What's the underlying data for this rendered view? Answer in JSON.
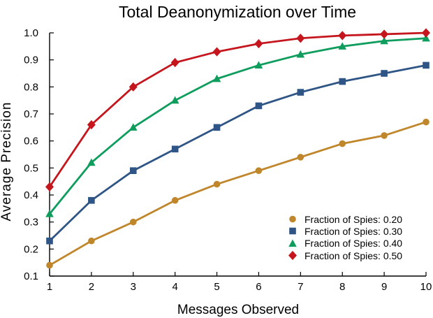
{
  "chart_data": {
    "type": "line",
    "title": "Total Deanonymization over Time",
    "xlabel": "Messages Observed",
    "ylabel": "Average Precision",
    "x": [
      1,
      2,
      3,
      4,
      5,
      6,
      7,
      8,
      9,
      10
    ],
    "x_tick_labels": [
      "1",
      "2",
      "3",
      "4",
      "5",
      "6",
      "7",
      "8",
      "9",
      "10"
    ],
    "y_tick_labels": [
      "0.1",
      "0.2",
      "0.3",
      "0.4",
      "0.5",
      "0.6",
      "0.7",
      "0.8",
      "0.9",
      "1.0"
    ],
    "xlim": [
      1,
      10
    ],
    "ylim": [
      0.1,
      1.0
    ],
    "grid": false,
    "legend_position": "lower right",
    "background_color": "#FFFFFF",
    "axis_color": "#000000",
    "series": [
      {
        "name": "Fraction of Spies: 0.20",
        "marker": "circle",
        "color": "#C0862B",
        "values": [
          0.14,
          0.23,
          0.3,
          0.38,
          0.44,
          0.49,
          0.54,
          0.59,
          0.62,
          0.67
        ]
      },
      {
        "name": "Fraction of Spies: 0.30",
        "marker": "square",
        "color": "#2E5585",
        "values": [
          0.23,
          0.38,
          0.49,
          0.57,
          0.65,
          0.73,
          0.78,
          0.82,
          0.85,
          0.88
        ]
      },
      {
        "name": "Fraction of Spies: 0.40",
        "marker": "triangle",
        "color": "#0E9D5D",
        "values": [
          0.33,
          0.52,
          0.65,
          0.75,
          0.83,
          0.88,
          0.92,
          0.95,
          0.97,
          0.98
        ]
      },
      {
        "name": "Fraction of Spies: 0.50",
        "marker": "diamond",
        "color": "#C4161C",
        "values": [
          0.43,
          0.66,
          0.8,
          0.89,
          0.93,
          0.96,
          0.98,
          0.99,
          0.995,
          1.0
        ]
      }
    ]
  }
}
